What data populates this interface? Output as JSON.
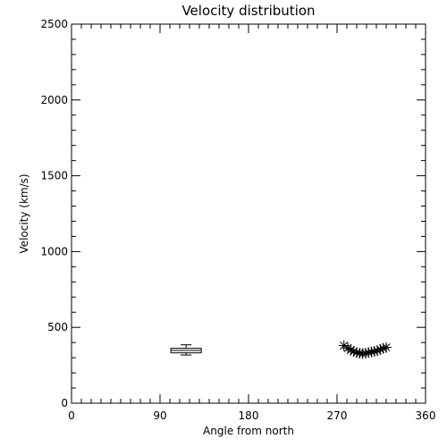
{
  "chart_data": {
    "type": "scatter",
    "title": "Velocity distribution",
    "xlabel": "Angle from north",
    "ylabel": "Velocity (km/s)",
    "xlim": [
      0,
      360
    ],
    "ylim": [
      0,
      2500
    ],
    "xticks": [
      0,
      90,
      180,
      270,
      360
    ],
    "yticks": [
      0,
      500,
      1000,
      1500,
      2000,
      2500
    ],
    "xminor_step": 10,
    "yminor_step": 100,
    "grid": false,
    "boxplot": {
      "x_min": 101,
      "x_max": 132,
      "whisker_low": 318,
      "q1": 332,
      "median": 348,
      "q3": 362,
      "whisker_high": 385
    },
    "series": [
      {
        "marker": "asterisk",
        "points": [
          [
            277,
            380
          ],
          [
            281,
            364
          ],
          [
            284,
            350
          ],
          [
            287,
            342
          ],
          [
            290,
            334
          ],
          [
            293,
            330
          ],
          [
            296,
            327
          ],
          [
            299,
            329
          ],
          [
            302,
            334
          ],
          [
            305,
            338
          ],
          [
            308,
            342
          ],
          [
            311,
            346
          ],
          [
            314,
            355
          ],
          [
            317,
            362
          ],
          [
            320,
            368
          ]
        ]
      }
    ]
  }
}
